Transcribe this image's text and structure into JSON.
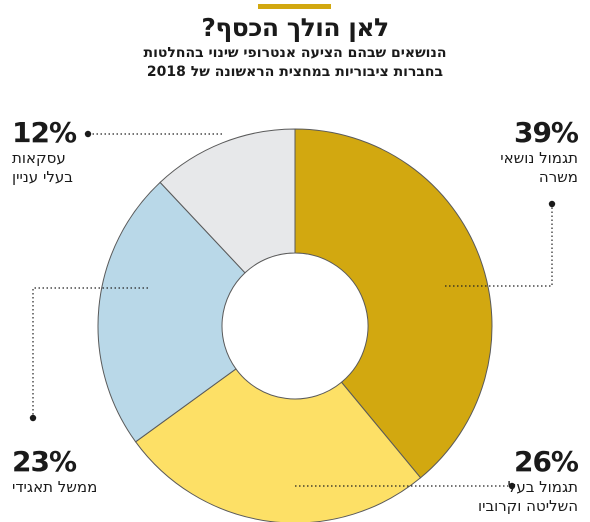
{
  "header": {
    "title": "לאן הולך הכסף?",
    "subtitle_line1": "הנושאים שבהם הציעה אנטרופי שינוי בהחלטות",
    "subtitle_line2": "בחברות ציבוריות במחצית הראשונה של 2018"
  },
  "colors": {
    "accent": "#d2a810"
  },
  "chart_data": {
    "type": "pie",
    "title": "לאן הולך הכסף?",
    "unit": "%",
    "slices": [
      {
        "value": 39,
        "label_pct": "39%",
        "name_line1": "תגמול נושאי",
        "name_line2": "משרה",
        "color": "#d2a810"
      },
      {
        "value": 26,
        "label_pct": "26%",
        "name_line1": "תגמול בעל",
        "name_line2": "השליטה וקרוביו",
        "color": "#fde066"
      },
      {
        "value": 23,
        "label_pct": "23%",
        "name_line1": "ממשל תאגידי",
        "name_line2": "",
        "color": "#b9d8e8"
      },
      {
        "value": 12,
        "label_pct": "12%",
        "name_line1": "עסקאות",
        "name_line2": "בעלי עניין",
        "color": "#e7e8ea"
      }
    ]
  }
}
